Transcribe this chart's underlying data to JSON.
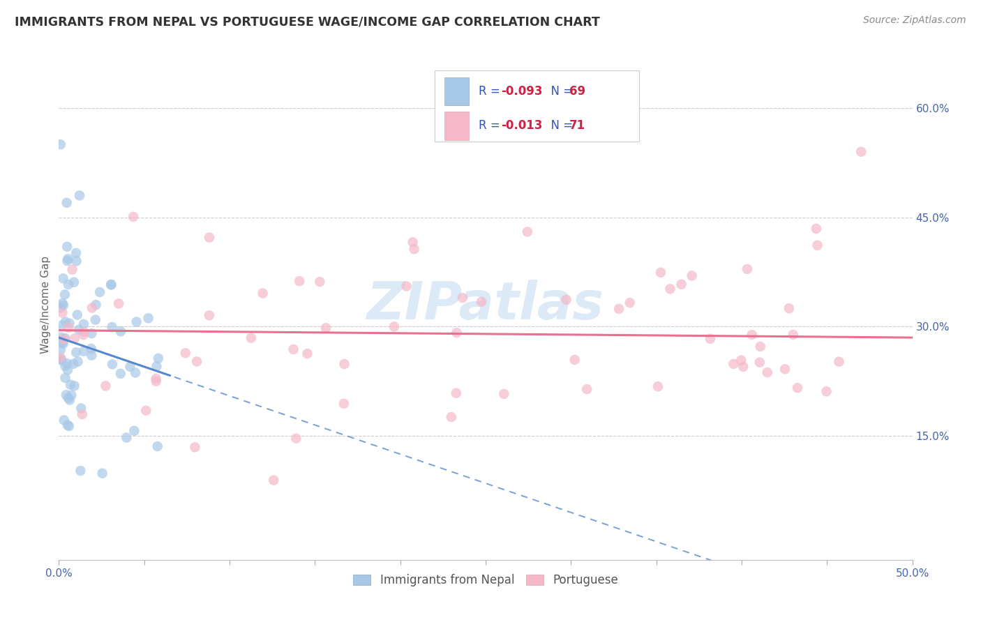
{
  "title": "IMMIGRANTS FROM NEPAL VS PORTUGUESE WAGE/INCOME GAP CORRELATION CHART",
  "source": "Source: ZipAtlas.com",
  "ylabel": "Wage/Income Gap",
  "ylabel_right_ticks": [
    "60.0%",
    "45.0%",
    "30.0%",
    "15.0%"
  ],
  "ylabel_right_vals": [
    0.6,
    0.45,
    0.3,
    0.15
  ],
  "xlim": [
    0.0,
    0.5
  ],
  "ylim": [
    -0.02,
    0.68
  ],
  "watermark": "ZIPatlas",
  "nepal_R": -0.093,
  "nepal_N": 69,
  "portuguese_R": -0.013,
  "portuguese_N": 71,
  "blue_color": "#a8c8e8",
  "pink_color": "#f4b8c8",
  "blue_line_color": "#5588cc",
  "pink_line_color": "#e87090",
  "grid_color": "#cccccc",
  "background_color": "#ffffff",
  "legend_text_color": "#3355bb",
  "legend_r_color": "#cc2244",
  "axis_label_color": "#4466aa",
  "title_color": "#333333",
  "source_color": "#888888"
}
